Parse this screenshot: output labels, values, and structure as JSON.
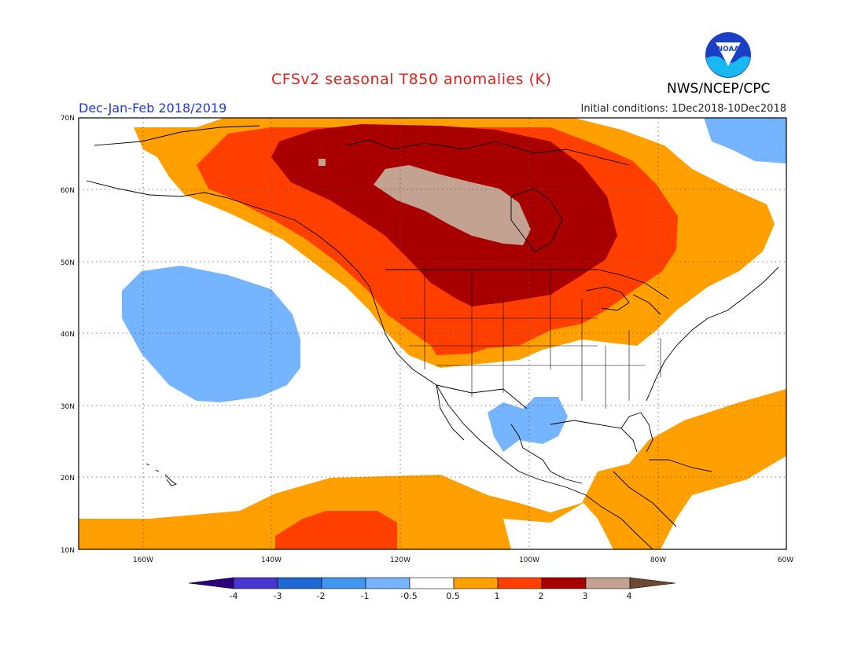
{
  "title": "CFSv2 seasonal T850 anomalies (K)",
  "subtitle": "Dec-Jan-Feb 2018/2019",
  "initial_conditions": "Initial conditions: 1Dec2018-10Dec2018",
  "agency": "NWS/NCEP/CPC",
  "logo_text": "NOAA",
  "map": {
    "lat_labels": [
      "70N",
      "60N",
      "50N",
      "40N",
      "30N",
      "20N",
      "10N"
    ],
    "lon_labels": [
      "160W",
      "140W",
      "120W",
      "100W",
      "80W",
      "60W"
    ],
    "grid": "dotted graticule every 10 degrees",
    "anomaly_regions": [
      {
        "region": "Northern Canada core",
        "category": "3 to 4",
        "color": "#c4a292"
      },
      {
        "region": "Canada / northern US plains",
        "category": "2 to 3",
        "color": "#a80000"
      },
      {
        "region": "Western Canada / US northern tier",
        "category": "1 to 2",
        "color": "#ff3f00"
      },
      {
        "region": "Alaska / eastern Canada / western US",
        "category": "0.5 to 1",
        "color": "#ff9f00"
      },
      {
        "region": "Eastern Pacific west of California",
        "category": "-1 to -0.5",
        "color": "#75b4ff"
      },
      {
        "region": "Northern Mexico / Texas",
        "category": "-1 to -0.5",
        "color": "#75b4ff"
      },
      {
        "region": "Tropical eastern Pacific",
        "category": "0.5 to 2",
        "color": "#ff9f00"
      },
      {
        "region": "Western Atlantic / Caribbean",
        "category": "0.5 to 1",
        "color": "#ff9f00"
      },
      {
        "region": "Northeast Canada corner",
        "category": "-1 to -0.5",
        "color": "#75b4ff"
      }
    ]
  },
  "colorbar": {
    "labels": [
      "-4",
      "-3",
      "-2",
      "-1",
      "-0.5",
      "0.5",
      "1",
      "2",
      "3",
      "4"
    ],
    "colors": [
      "#2d0082",
      "#4b35d0",
      "#1e69d6",
      "#4096f0",
      "#75b4ff",
      "#ffffff",
      "#ff9f00",
      "#ff3f00",
      "#a80000",
      "#c4a292",
      "#6e4832"
    ]
  }
}
